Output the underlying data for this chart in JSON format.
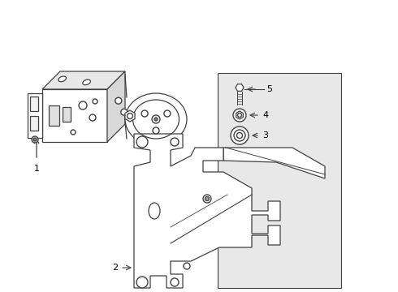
{
  "bg_color": "#ffffff",
  "line_color": "#404040",
  "label_color": "#000000",
  "panel_bg": "#e8e8e8",
  "figsize": [
    4.9,
    3.6
  ],
  "dpi": 100,
  "parts": {
    "label1": "1",
    "label2": "2",
    "label3": "3",
    "label4": "4",
    "label5": "5"
  }
}
